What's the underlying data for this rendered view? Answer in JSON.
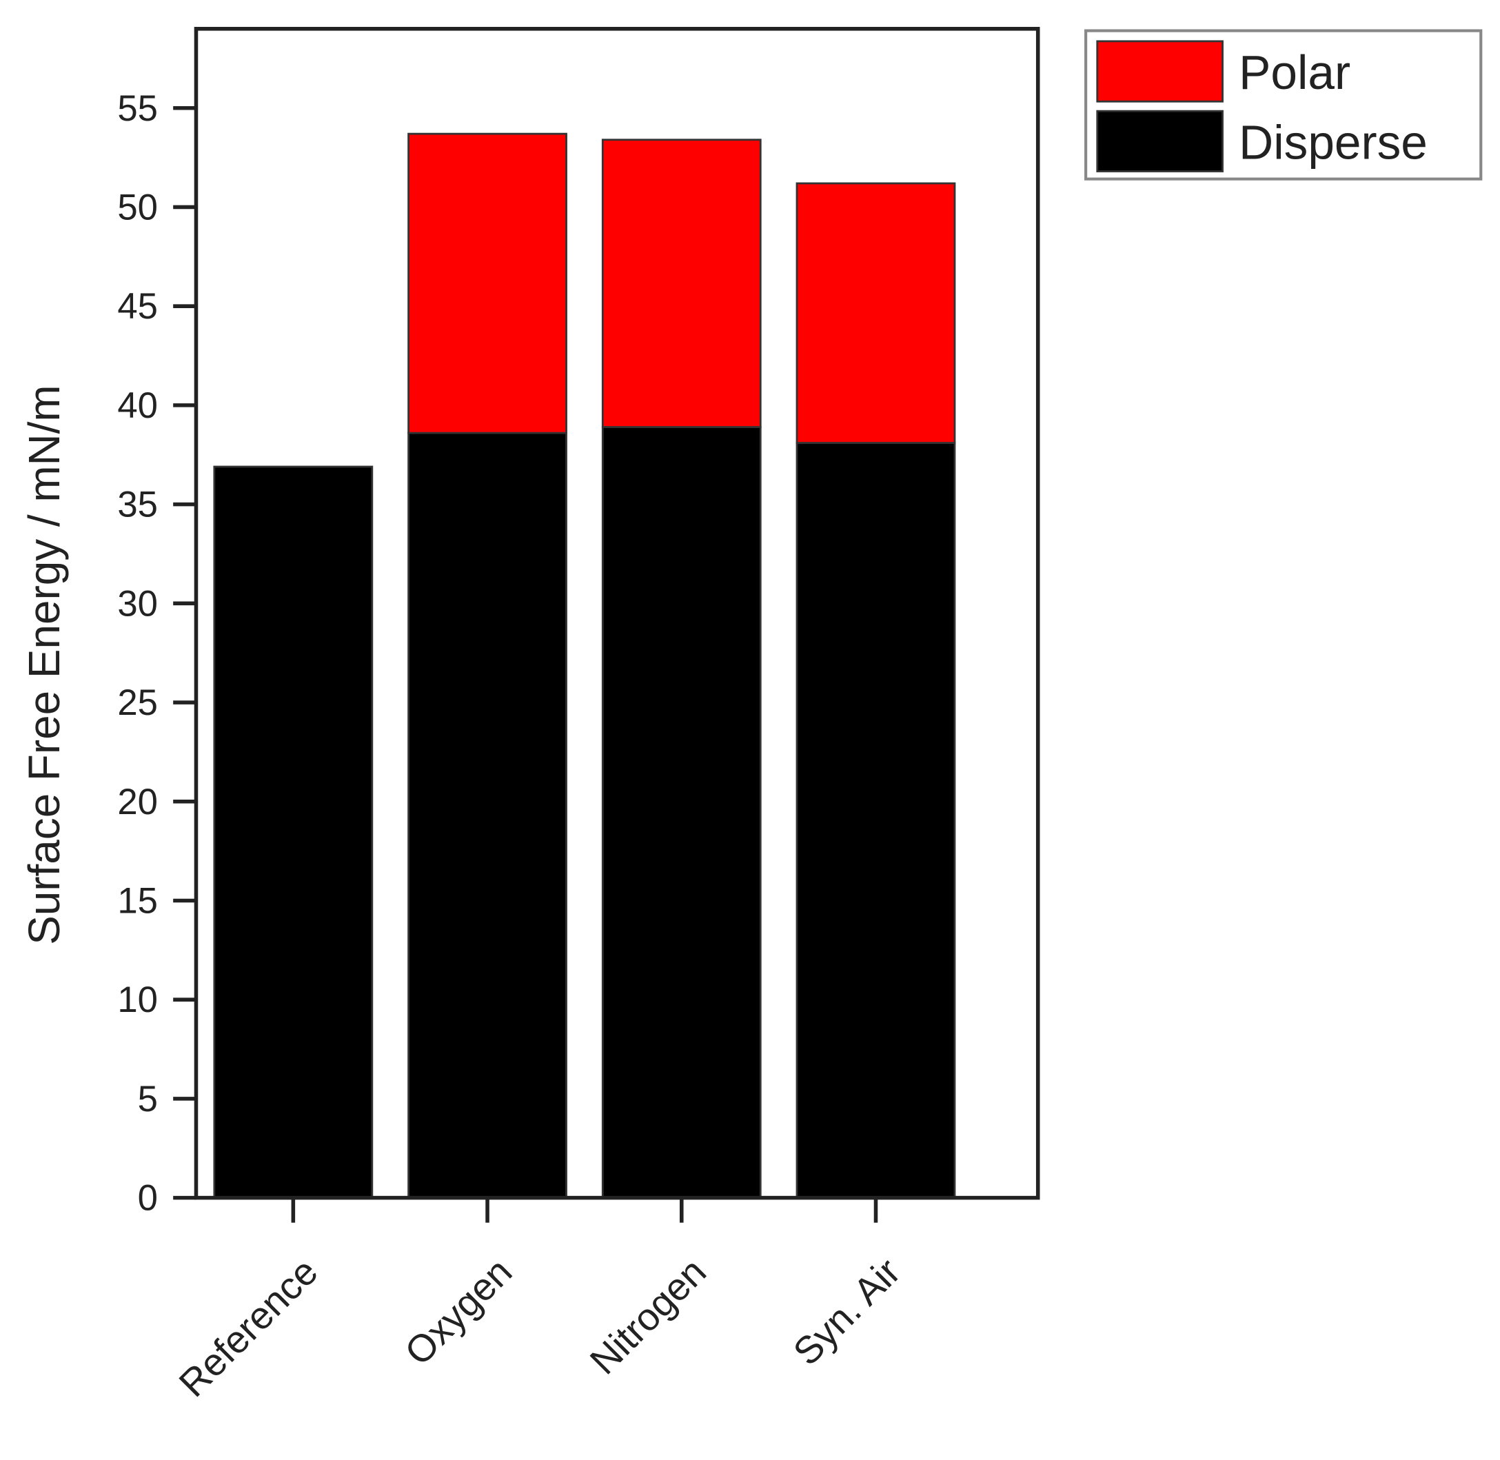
{
  "chart_data": {
    "type": "stacked-bar",
    "y_label": "Surface Free Energy   / mN/m",
    "categories": [
      "Reference",
      "Oxygen",
      "Nitrogen",
      "Syn. Air"
    ],
    "series": [
      {
        "name": "Disperse",
        "color": "#000000",
        "values": [
          36.9,
          38.6,
          38.9,
          38.1
        ]
      },
      {
        "name": "Polar",
        "color": "#ff0000",
        "values": [
          0,
          15.1,
          14.5,
          13.1
        ]
      }
    ],
    "ylim": [
      0,
      59
    ],
    "yticks": [
      0,
      5,
      10,
      15,
      20,
      25,
      30,
      35,
      40,
      45,
      50,
      55
    ],
    "legend": "outside-top-right"
  }
}
